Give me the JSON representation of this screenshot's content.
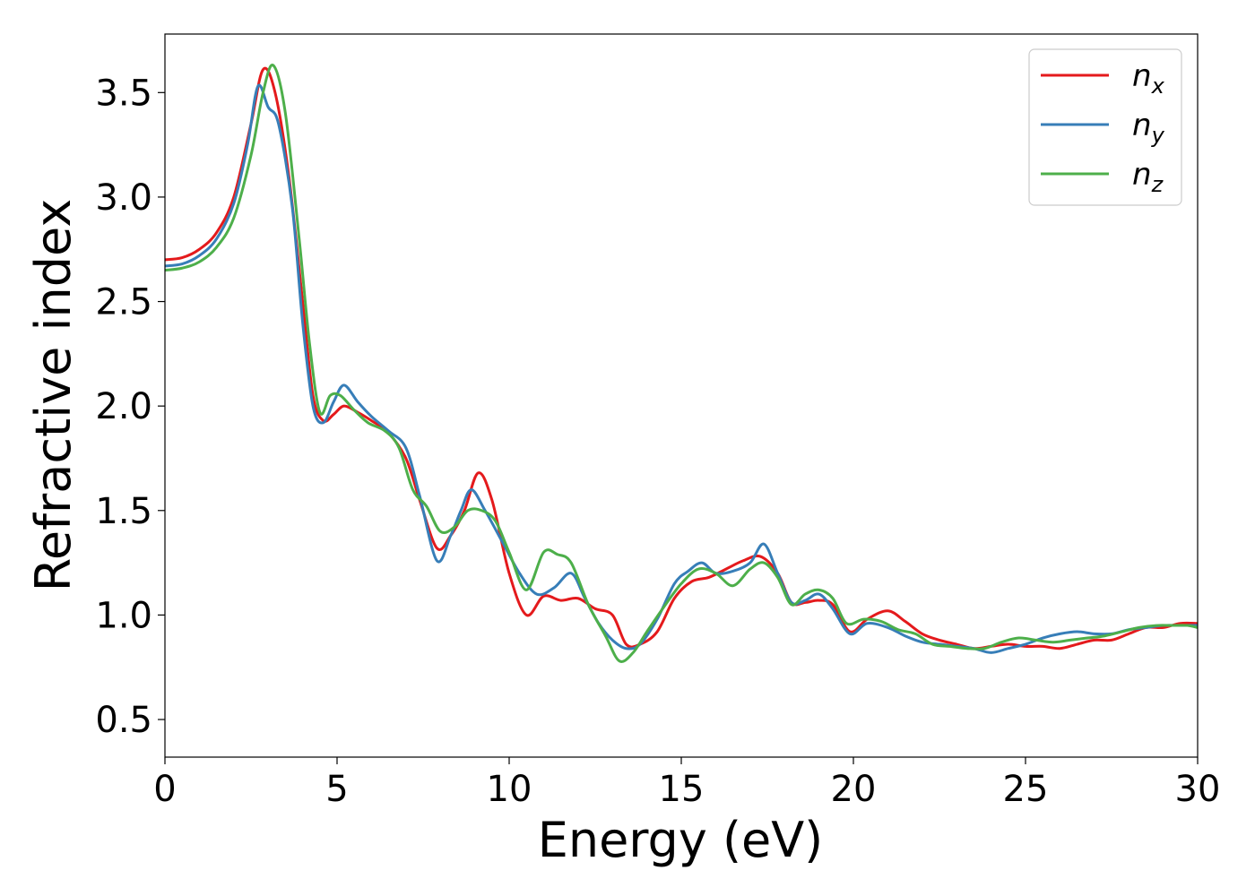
{
  "chart_data": {
    "type": "line",
    "xlabel": "Energy (eV)",
    "ylabel": "Refractive index",
    "xlim": [
      0,
      30
    ],
    "ylim": [
      0.32,
      3.78
    ],
    "xticks": [
      0,
      5,
      10,
      15,
      20,
      25,
      30
    ],
    "yticks": [
      0.5,
      1.0,
      1.5,
      2.0,
      2.5,
      3.0,
      3.5
    ],
    "xtick_labels": [
      "0",
      "5",
      "10",
      "15",
      "20",
      "25",
      "30"
    ],
    "ytick_labels": [
      "0.5",
      "1.0",
      "1.5",
      "2.0",
      "2.5",
      "3.0",
      "3.5"
    ],
    "grid": false,
    "legend_position": "top-right",
    "series": [
      {
        "name": "n",
        "subscript": "x",
        "color": "#e41a1c",
        "points": [
          [
            0,
            2.7
          ],
          [
            0.5,
            2.71
          ],
          [
            1.0,
            2.75
          ],
          [
            1.5,
            2.83
          ],
          [
            2.0,
            3.0
          ],
          [
            2.5,
            3.35
          ],
          [
            2.85,
            3.61
          ],
          [
            3.2,
            3.5
          ],
          [
            3.6,
            3.1
          ],
          [
            4.0,
            2.5
          ],
          [
            4.3,
            2.05
          ],
          [
            4.6,
            1.93
          ],
          [
            4.9,
            1.96
          ],
          [
            5.2,
            2.0
          ],
          [
            5.6,
            1.97
          ],
          [
            6.0,
            1.93
          ],
          [
            6.5,
            1.87
          ],
          [
            7.0,
            1.75
          ],
          [
            7.4,
            1.55
          ],
          [
            7.9,
            1.32
          ],
          [
            8.3,
            1.38
          ],
          [
            8.7,
            1.5
          ],
          [
            9.1,
            1.68
          ],
          [
            9.5,
            1.55
          ],
          [
            10.0,
            1.2
          ],
          [
            10.5,
            1.0
          ],
          [
            11.0,
            1.09
          ],
          [
            11.5,
            1.07
          ],
          [
            12.0,
            1.08
          ],
          [
            12.5,
            1.03
          ],
          [
            13.0,
            1.0
          ],
          [
            13.4,
            0.86
          ],
          [
            13.8,
            0.86
          ],
          [
            14.3,
            0.92
          ],
          [
            14.8,
            1.08
          ],
          [
            15.3,
            1.16
          ],
          [
            15.8,
            1.18
          ],
          [
            16.3,
            1.22
          ],
          [
            16.8,
            1.26
          ],
          [
            17.3,
            1.28
          ],
          [
            17.8,
            1.2
          ],
          [
            18.2,
            1.06
          ],
          [
            18.6,
            1.06
          ],
          [
            19.0,
            1.07
          ],
          [
            19.4,
            1.05
          ],
          [
            19.9,
            0.92
          ],
          [
            20.4,
            0.98
          ],
          [
            21.0,
            1.02
          ],
          [
            21.5,
            0.97
          ],
          [
            22.0,
            0.91
          ],
          [
            22.5,
            0.88
          ],
          [
            23.0,
            0.86
          ],
          [
            23.5,
            0.84
          ],
          [
            24.0,
            0.85
          ],
          [
            24.5,
            0.86
          ],
          [
            25.0,
            0.85
          ],
          [
            25.5,
            0.85
          ],
          [
            26.0,
            0.84
          ],
          [
            26.5,
            0.86
          ],
          [
            27.0,
            0.88
          ],
          [
            27.5,
            0.88
          ],
          [
            28.0,
            0.91
          ],
          [
            28.5,
            0.94
          ],
          [
            29.0,
            0.94
          ],
          [
            29.5,
            0.96
          ],
          [
            30.0,
            0.96
          ]
        ]
      },
      {
        "name": "n",
        "subscript": "y",
        "color": "#377eb8",
        "points": [
          [
            0,
            2.67
          ],
          [
            0.5,
            2.68
          ],
          [
            1.0,
            2.72
          ],
          [
            1.5,
            2.8
          ],
          [
            2.0,
            2.97
          ],
          [
            2.4,
            3.25
          ],
          [
            2.7,
            3.53
          ],
          [
            3.0,
            3.43
          ],
          [
            3.3,
            3.35
          ],
          [
            3.7,
            2.95
          ],
          [
            4.0,
            2.4
          ],
          [
            4.3,
            2.0
          ],
          [
            4.6,
            1.92
          ],
          [
            4.9,
            2.02
          ],
          [
            5.2,
            2.1
          ],
          [
            5.6,
            2.02
          ],
          [
            6.0,
            1.95
          ],
          [
            6.5,
            1.88
          ],
          [
            7.0,
            1.8
          ],
          [
            7.4,
            1.57
          ],
          [
            7.9,
            1.26
          ],
          [
            8.3,
            1.38
          ],
          [
            8.6,
            1.5
          ],
          [
            8.9,
            1.6
          ],
          [
            9.3,
            1.5
          ],
          [
            9.8,
            1.35
          ],
          [
            10.3,
            1.2
          ],
          [
            10.8,
            1.1
          ],
          [
            11.3,
            1.13
          ],
          [
            11.8,
            1.2
          ],
          [
            12.2,
            1.08
          ],
          [
            12.6,
            0.96
          ],
          [
            13.0,
            0.88
          ],
          [
            13.4,
            0.84
          ],
          [
            13.8,
            0.86
          ],
          [
            14.3,
            0.98
          ],
          [
            14.8,
            1.15
          ],
          [
            15.2,
            1.21
          ],
          [
            15.6,
            1.25
          ],
          [
            16.0,
            1.2
          ],
          [
            16.5,
            1.21
          ],
          [
            17.0,
            1.25
          ],
          [
            17.4,
            1.34
          ],
          [
            17.8,
            1.2
          ],
          [
            18.2,
            1.06
          ],
          [
            18.6,
            1.07
          ],
          [
            19.0,
            1.1
          ],
          [
            19.4,
            1.03
          ],
          [
            19.9,
            0.91
          ],
          [
            20.4,
            0.96
          ],
          [
            21.0,
            0.94
          ],
          [
            21.5,
            0.9
          ],
          [
            22.0,
            0.87
          ],
          [
            22.5,
            0.86
          ],
          [
            23.0,
            0.85
          ],
          [
            23.5,
            0.84
          ],
          [
            24.0,
            0.82
          ],
          [
            24.5,
            0.84
          ],
          [
            25.0,
            0.86
          ],
          [
            25.5,
            0.89
          ],
          [
            26.0,
            0.91
          ],
          [
            26.5,
            0.92
          ],
          [
            27.0,
            0.91
          ],
          [
            27.5,
            0.91
          ],
          [
            28.0,
            0.93
          ],
          [
            28.5,
            0.94
          ],
          [
            29.0,
            0.95
          ],
          [
            29.5,
            0.95
          ],
          [
            30.0,
            0.95
          ]
        ]
      },
      {
        "name": "n",
        "subscript": "z",
        "color": "#4daf4a",
        "points": [
          [
            0,
            2.65
          ],
          [
            0.5,
            2.66
          ],
          [
            1.0,
            2.69
          ],
          [
            1.5,
            2.76
          ],
          [
            2.0,
            2.9
          ],
          [
            2.5,
            3.2
          ],
          [
            2.85,
            3.5
          ],
          [
            3.15,
            3.63
          ],
          [
            3.5,
            3.4
          ],
          [
            3.9,
            2.8
          ],
          [
            4.2,
            2.3
          ],
          [
            4.5,
            1.97
          ],
          [
            4.8,
            2.05
          ],
          [
            5.1,
            2.05
          ],
          [
            5.5,
            1.98
          ],
          [
            5.9,
            1.92
          ],
          [
            6.4,
            1.88
          ],
          [
            6.8,
            1.8
          ],
          [
            7.2,
            1.6
          ],
          [
            7.6,
            1.52
          ],
          [
            8.0,
            1.4
          ],
          [
            8.4,
            1.42
          ],
          [
            8.8,
            1.5
          ],
          [
            9.2,
            1.5
          ],
          [
            9.6,
            1.45
          ],
          [
            10.0,
            1.3
          ],
          [
            10.5,
            1.12
          ],
          [
            11.0,
            1.3
          ],
          [
            11.4,
            1.29
          ],
          [
            11.8,
            1.25
          ],
          [
            12.3,
            1.05
          ],
          [
            12.8,
            0.9
          ],
          [
            13.2,
            0.78
          ],
          [
            13.6,
            0.82
          ],
          [
            14.0,
            0.92
          ],
          [
            14.5,
            1.04
          ],
          [
            15.0,
            1.15
          ],
          [
            15.5,
            1.22
          ],
          [
            16.0,
            1.2
          ],
          [
            16.5,
            1.14
          ],
          [
            17.0,
            1.22
          ],
          [
            17.4,
            1.25
          ],
          [
            17.8,
            1.18
          ],
          [
            18.2,
            1.05
          ],
          [
            18.6,
            1.1
          ],
          [
            19.0,
            1.12
          ],
          [
            19.4,
            1.08
          ],
          [
            19.8,
            0.96
          ],
          [
            20.3,
            0.98
          ],
          [
            20.8,
            0.97
          ],
          [
            21.3,
            0.93
          ],
          [
            21.8,
            0.91
          ],
          [
            22.3,
            0.86
          ],
          [
            22.8,
            0.85
          ],
          [
            23.3,
            0.84
          ],
          [
            23.8,
            0.84
          ],
          [
            24.3,
            0.87
          ],
          [
            24.8,
            0.89
          ],
          [
            25.3,
            0.88
          ],
          [
            25.8,
            0.87
          ],
          [
            26.3,
            0.88
          ],
          [
            26.8,
            0.89
          ],
          [
            27.3,
            0.9
          ],
          [
            27.8,
            0.92
          ],
          [
            28.3,
            0.94
          ],
          [
            28.8,
            0.95
          ],
          [
            29.3,
            0.95
          ],
          [
            29.7,
            0.95
          ],
          [
            30.0,
            0.94
          ]
        ]
      }
    ]
  }
}
